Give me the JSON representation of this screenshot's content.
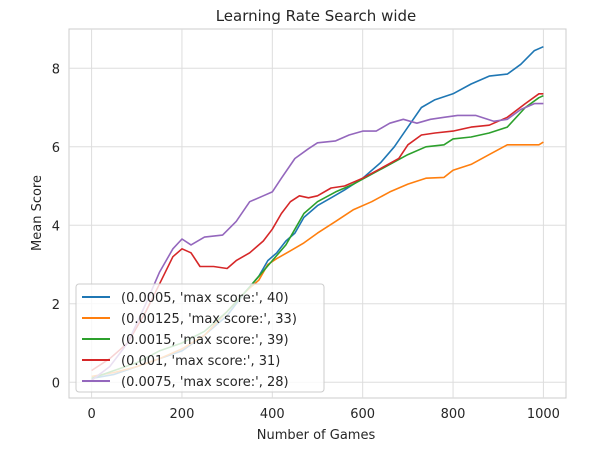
{
  "chart_data": {
    "type": "line",
    "title": "Learning Rate Search wide",
    "xlabel": "Number of Games",
    "ylabel": "Mean Score",
    "xlim": [
      -50,
      1050
    ],
    "ylim": [
      -0.4,
      9.0
    ],
    "xticks": [
      0,
      200,
      400,
      600,
      800,
      1000
    ],
    "yticks": [
      0,
      2,
      4,
      6,
      8
    ],
    "grid": true,
    "legend_position": "lower-left",
    "series": [
      {
        "name": "(0.0005, 'max score:', 40)",
        "color": "#1f77b4",
        "points": [
          [
            0,
            0.1
          ],
          [
            50,
            0.2
          ],
          [
            100,
            0.4
          ],
          [
            150,
            0.6
          ],
          [
            200,
            0.8
          ],
          [
            250,
            1.2
          ],
          [
            300,
            1.7
          ],
          [
            340,
            2.3
          ],
          [
            370,
            2.7
          ],
          [
            390,
            3.1
          ],
          [
            410,
            3.3
          ],
          [
            430,
            3.6
          ],
          [
            450,
            3.8
          ],
          [
            470,
            4.2
          ],
          [
            500,
            4.5
          ],
          [
            530,
            4.7
          ],
          [
            560,
            4.9
          ],
          [
            600,
            5.2
          ],
          [
            640,
            5.6
          ],
          [
            670,
            6.0
          ],
          [
            700,
            6.5
          ],
          [
            730,
            7.0
          ],
          [
            760,
            7.2
          ],
          [
            800,
            7.35
          ],
          [
            840,
            7.6
          ],
          [
            880,
            7.8
          ],
          [
            920,
            7.85
          ],
          [
            950,
            8.1
          ],
          [
            980,
            8.45
          ],
          [
            1000,
            8.55
          ]
        ]
      },
      {
        "name": "(0.00125, 'max score:', 33)",
        "color": "#ff7f0e",
        "points": [
          [
            0,
            0.15
          ],
          [
            50,
            0.25
          ],
          [
            100,
            0.4
          ],
          [
            150,
            0.6
          ],
          [
            200,
            0.85
          ],
          [
            250,
            1.2
          ],
          [
            300,
            1.8
          ],
          [
            340,
            2.3
          ],
          [
            370,
            2.6
          ],
          [
            390,
            3.0
          ],
          [
            410,
            3.15
          ],
          [
            440,
            3.35
          ],
          [
            470,
            3.55
          ],
          [
            500,
            3.8
          ],
          [
            540,
            4.1
          ],
          [
            580,
            4.4
          ],
          [
            620,
            4.6
          ],
          [
            660,
            4.85
          ],
          [
            700,
            5.05
          ],
          [
            740,
            5.2
          ],
          [
            780,
            5.22
          ],
          [
            800,
            5.4
          ],
          [
            840,
            5.55
          ],
          [
            880,
            5.8
          ],
          [
            920,
            6.05
          ],
          [
            960,
            6.05
          ],
          [
            990,
            6.05
          ],
          [
            1000,
            6.12
          ]
        ]
      },
      {
        "name": "(0.0015, 'max score:', 39)",
        "color": "#2ca02c",
        "points": [
          [
            0,
            0.1
          ],
          [
            50,
            0.3
          ],
          [
            100,
            0.5
          ],
          [
            150,
            0.8
          ],
          [
            200,
            1.0
          ],
          [
            250,
            1.3
          ],
          [
            300,
            1.8
          ],
          [
            340,
            2.3
          ],
          [
            370,
            2.7
          ],
          [
            400,
            3.1
          ],
          [
            430,
            3.5
          ],
          [
            450,
            3.9
          ],
          [
            470,
            4.3
          ],
          [
            500,
            4.6
          ],
          [
            540,
            4.85
          ],
          [
            580,
            5.05
          ],
          [
            620,
            5.3
          ],
          [
            660,
            5.55
          ],
          [
            700,
            5.8
          ],
          [
            740,
            6.0
          ],
          [
            780,
            6.05
          ],
          [
            800,
            6.2
          ],
          [
            840,
            6.25
          ],
          [
            880,
            6.35
          ],
          [
            920,
            6.5
          ],
          [
            960,
            7.0
          ],
          [
            990,
            7.25
          ],
          [
            1000,
            7.3
          ]
        ]
      },
      {
        "name": "(0.001, 'max score:', 31)",
        "color": "#d62728",
        "points": [
          [
            0,
            0.3
          ],
          [
            40,
            0.6
          ],
          [
            80,
            1.0
          ],
          [
            120,
            1.8
          ],
          [
            150,
            2.5
          ],
          [
            180,
            3.2
          ],
          [
            200,
            3.4
          ],
          [
            220,
            3.3
          ],
          [
            240,
            2.95
          ],
          [
            270,
            2.95
          ],
          [
            300,
            2.9
          ],
          [
            320,
            3.1
          ],
          [
            350,
            3.3
          ],
          [
            380,
            3.6
          ],
          [
            400,
            3.9
          ],
          [
            420,
            4.3
          ],
          [
            440,
            4.6
          ],
          [
            460,
            4.75
          ],
          [
            480,
            4.7
          ],
          [
            500,
            4.75
          ],
          [
            530,
            4.95
          ],
          [
            560,
            5.0
          ],
          [
            600,
            5.2
          ],
          [
            640,
            5.45
          ],
          [
            680,
            5.7
          ],
          [
            700,
            6.05
          ],
          [
            730,
            6.3
          ],
          [
            760,
            6.35
          ],
          [
            800,
            6.4
          ],
          [
            840,
            6.5
          ],
          [
            880,
            6.55
          ],
          [
            920,
            6.75
          ],
          [
            960,
            7.1
          ],
          [
            990,
            7.35
          ],
          [
            1000,
            7.35
          ]
        ]
      },
      {
        "name": "(0.0075, 'max score:', 28)",
        "color": "#9467bd",
        "points": [
          [
            0,
            0.05
          ],
          [
            40,
            0.4
          ],
          [
            80,
            1.0
          ],
          [
            120,
            2.0
          ],
          [
            150,
            2.8
          ],
          [
            180,
            3.4
          ],
          [
            200,
            3.65
          ],
          [
            220,
            3.5
          ],
          [
            250,
            3.7
          ],
          [
            290,
            3.75
          ],
          [
            320,
            4.1
          ],
          [
            350,
            4.6
          ],
          [
            380,
            4.75
          ],
          [
            400,
            4.85
          ],
          [
            420,
            5.2
          ],
          [
            450,
            5.7
          ],
          [
            480,
            5.95
          ],
          [
            500,
            6.1
          ],
          [
            540,
            6.15
          ],
          [
            570,
            6.3
          ],
          [
            600,
            6.4
          ],
          [
            630,
            6.4
          ],
          [
            660,
            6.6
          ],
          [
            690,
            6.7
          ],
          [
            720,
            6.6
          ],
          [
            750,
            6.7
          ],
          [
            780,
            6.75
          ],
          [
            810,
            6.8
          ],
          [
            850,
            6.8
          ],
          [
            890,
            6.65
          ],
          [
            920,
            6.7
          ],
          [
            950,
            6.95
          ],
          [
            980,
            7.1
          ],
          [
            1000,
            7.1
          ]
        ]
      }
    ]
  }
}
